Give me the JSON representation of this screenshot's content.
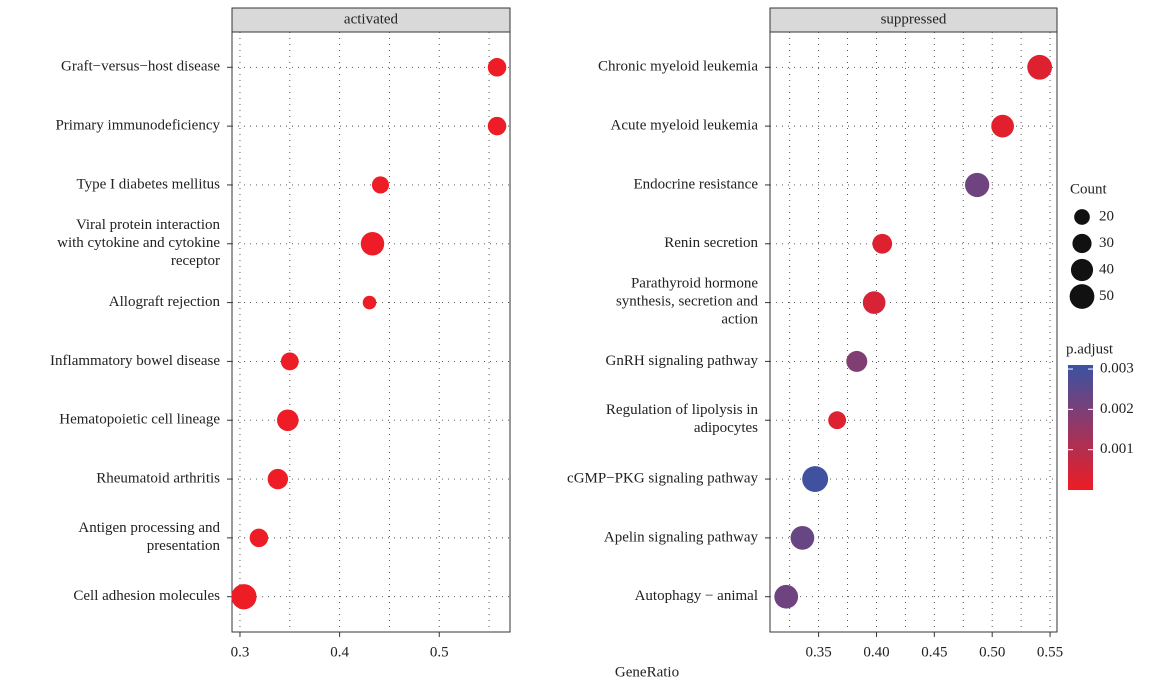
{
  "chart_data": {
    "type": "dot",
    "xlabel": "GeneRatio",
    "panels": [
      {
        "title": "activated",
        "categories": [
          "Graft−versus−host disease",
          "Primary immunodeficiency",
          "Type I diabetes mellitus",
          "Viral protein interaction\nwith cytokine and cytokine\nreceptor",
          "Allograft rejection",
          "Inflammatory bowel disease",
          "Hematopoietic cell lineage",
          "Rheumatoid arthritis",
          "Antigen processing and\npresentation",
          "Cell adhesion molecules"
        ],
        "x": [
          0.558,
          0.558,
          0.441,
          0.433,
          0.43,
          0.35,
          0.348,
          0.338,
          0.319,
          0.304
        ],
        "count": [
          28,
          28,
          24,
          45,
          15,
          26,
          38,
          34,
          28,
          52
        ],
        "p_adjust": [
          2e-05,
          2e-05,
          3e-05,
          2e-05,
          4e-05,
          3e-05,
          2e-05,
          2e-05,
          3e-05,
          1e-05
        ],
        "xlim": [
          0.292,
          0.571
        ],
        "xticks": [
          0.3,
          0.4,
          0.5
        ],
        "minor_xticks": [
          0.35,
          0.45,
          0.55
        ]
      },
      {
        "title": "suppressed",
        "categories": [
          "Chronic myeloid leukemia",
          "Acute myeloid leukemia",
          "Endocrine resistance",
          "Renin secretion",
          "Parathyroid hormone\nsynthesis, secretion and\naction",
          "GnRH signaling pathway",
          "Regulation of lipolysis in\nadipocytes",
          "cGMP−PKG signaling pathway",
          "Apelin signaling pathway",
          "Autophagy − animal"
        ],
        "x": [
          0.541,
          0.509,
          0.487,
          0.405,
          0.398,
          0.383,
          0.366,
          0.347,
          0.336,
          0.322
        ],
        "count": [
          50,
          42,
          48,
          32,
          42,
          36,
          26,
          55,
          46,
          46
        ],
        "p_adjust": [
          0.0003,
          0.0002,
          0.0022,
          0.0003,
          0.0004,
          0.0019,
          0.0003,
          0.003,
          0.0023,
          0.0022
        ],
        "xlim": [
          0.308,
          0.556
        ],
        "xticks": [
          0.35,
          {
            "value": 0.4,
            "label": "0.40"
          },
          0.45,
          {
            "value": 0.5,
            "label": "0.50"
          },
          0.55
        ],
        "minor_xticks": [
          0.325,
          0.375,
          0.425,
          0.475,
          0.525
        ]
      }
    ],
    "size_legend": {
      "title": "Count",
      "values": [
        20,
        30,
        40,
        50
      ],
      "color": "#111111"
    },
    "color_legend": {
      "title": "p.adjust",
      "lim": [
        0,
        0.0031
      ],
      "ticks": [
        0.001,
        0.002,
        0.003
      ],
      "low_color": "#ee1c25",
      "high_color": "#3a53a4"
    }
  }
}
